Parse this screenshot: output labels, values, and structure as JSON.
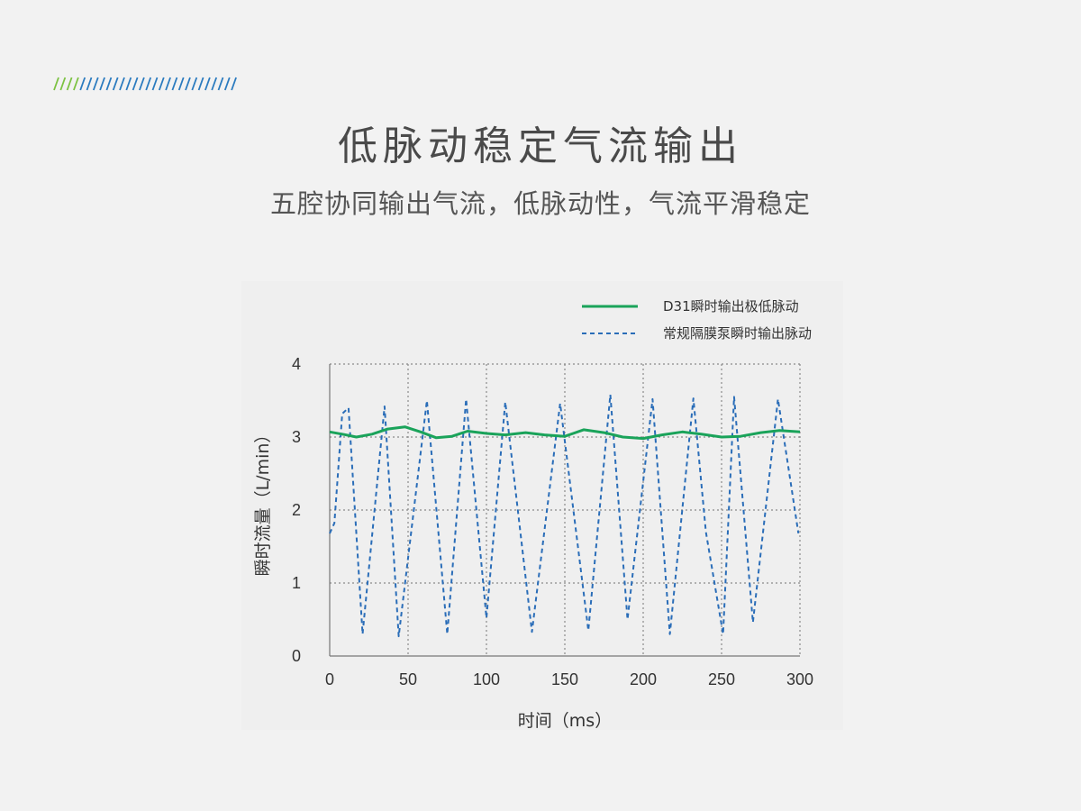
{
  "heading": {
    "title": "低脉动稳定气流输出",
    "subtitle": "五腔协同输出气流，低脉动性，气流平滑稳定"
  },
  "colors": {
    "green": "#1aa35a",
    "blue": "#2a6db8",
    "stripe_green": "#7cc242",
    "stripe_blue": "#2b7bbf",
    "grid": "#8a8a8a"
  },
  "chart_data": {
    "type": "line",
    "xlabel": "时间（ms）",
    "ylabel": "瞬时流量（L/min）",
    "xlim": [
      0,
      300
    ],
    "ylim": [
      0,
      4
    ],
    "xticks": [
      0,
      50,
      100,
      150,
      200,
      250,
      300
    ],
    "yticks": [
      0,
      1,
      2,
      3,
      4
    ],
    "grid": true,
    "legend_position": "top-right",
    "series": [
      {
        "name": "D31瞬时输出极低脉动",
        "style": "solid",
        "color": "#1aa35a",
        "x": [
          0,
          8,
          17,
          27,
          37,
          48,
          58,
          68,
          78,
          88,
          100,
          112,
          125,
          137,
          150,
          162,
          175,
          187,
          200,
          212,
          225,
          237,
          250,
          262,
          275,
          287,
          300
        ],
        "y": [
          3.07,
          3.04,
          3.0,
          3.04,
          3.11,
          3.14,
          3.07,
          2.99,
          3.01,
          3.08,
          3.05,
          3.03,
          3.06,
          3.03,
          3.01,
          3.1,
          3.06,
          3.0,
          2.98,
          3.03,
          3.07,
          3.04,
          3.0,
          3.01,
          3.06,
          3.09,
          3.07
        ]
      },
      {
        "name": "常规隔膜泵瞬时输出脉动",
        "style": "dashed",
        "color": "#2a6db8",
        "x": [
          0,
          3,
          8,
          12,
          21,
          35,
          44,
          62,
          75,
          87,
          100,
          112,
          129,
          147,
          165,
          179,
          190,
          206,
          217,
          232,
          240,
          251,
          258,
          270,
          286,
          299
        ],
        "y": [
          1.68,
          1.82,
          3.32,
          3.4,
          0.3,
          3.42,
          0.27,
          3.5,
          0.3,
          3.52,
          0.52,
          3.48,
          0.33,
          3.46,
          0.35,
          3.58,
          0.5,
          3.52,
          0.3,
          3.53,
          1.7,
          0.3,
          3.55,
          0.46,
          3.52,
          1.68
        ]
      }
    ]
  }
}
